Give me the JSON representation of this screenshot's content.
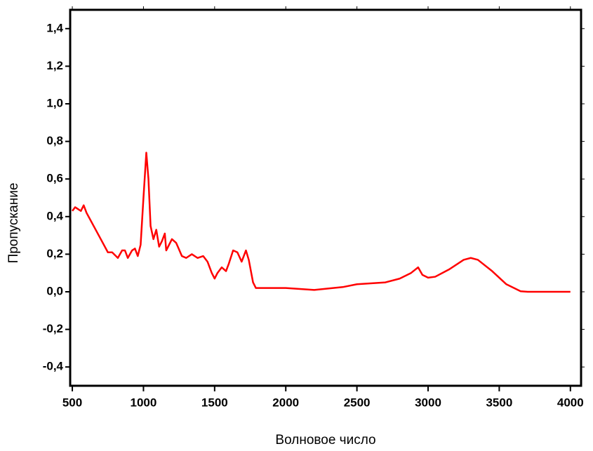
{
  "chart_data": {
    "type": "line",
    "x_label": "Волновое число",
    "y_label": "Пропускание",
    "xlim": [
      485,
      4075
    ],
    "ylim": [
      -0.5,
      1.5
    ],
    "xticks": [
      500,
      1000,
      1500,
      2000,
      2500,
      3000,
      3500,
      4000
    ],
    "yticks": [
      {
        "value": -0.4,
        "label": "-0,4"
      },
      {
        "value": -0.2,
        "label": "-0,2"
      },
      {
        "value": 0.0,
        "label": "0,0"
      },
      {
        "value": 0.2,
        "label": "0,2"
      },
      {
        "value": 0.4,
        "label": "0,4"
      },
      {
        "value": 0.6,
        "label": "0,6"
      },
      {
        "value": 0.8,
        "label": "0,8"
      },
      {
        "value": 1.0,
        "label": "1,0"
      },
      {
        "value": 1.2,
        "label": "1,2"
      },
      {
        "value": 1.4,
        "label": "1,4"
      }
    ],
    "grid": false,
    "series": [
      {
        "color": "#ff0000",
        "x": [
          500,
          520,
          540,
          560,
          580,
          600,
          650,
          700,
          750,
          780,
          820,
          850,
          870,
          890,
          920,
          940,
          960,
          980,
          1000,
          1020,
          1035,
          1050,
          1070,
          1090,
          1110,
          1130,
          1150,
          1160,
          1180,
          1200,
          1230,
          1270,
          1300,
          1340,
          1380,
          1420,
          1450,
          1480,
          1500,
          1520,
          1550,
          1580,
          1600,
          1630,
          1660,
          1690,
          1720,
          1740,
          1770,
          1790,
          1850,
          2000,
          2200,
          2400,
          2500,
          2700,
          2800,
          2880,
          2930,
          2960,
          3000,
          3050,
          3150,
          3250,
          3300,
          3350,
          3450,
          3550,
          3650,
          3700,
          4000
        ],
        "values": [
          0.43,
          0.45,
          0.44,
          0.43,
          0.46,
          0.42,
          0.35,
          0.28,
          0.21,
          0.21,
          0.18,
          0.22,
          0.22,
          0.18,
          0.22,
          0.23,
          0.19,
          0.25,
          0.5,
          0.74,
          0.6,
          0.35,
          0.28,
          0.33,
          0.24,
          0.27,
          0.31,
          0.22,
          0.25,
          0.28,
          0.26,
          0.19,
          0.18,
          0.2,
          0.18,
          0.19,
          0.16,
          0.1,
          0.07,
          0.1,
          0.13,
          0.11,
          0.15,
          0.22,
          0.21,
          0.16,
          0.22,
          0.17,
          0.05,
          0.02,
          0.02,
          0.02,
          0.01,
          0.025,
          0.04,
          0.05,
          0.07,
          0.1,
          0.13,
          0.09,
          0.075,
          0.08,
          0.12,
          0.17,
          0.18,
          0.17,
          0.11,
          0.04,
          0.003,
          0,
          0
        ]
      }
    ]
  }
}
